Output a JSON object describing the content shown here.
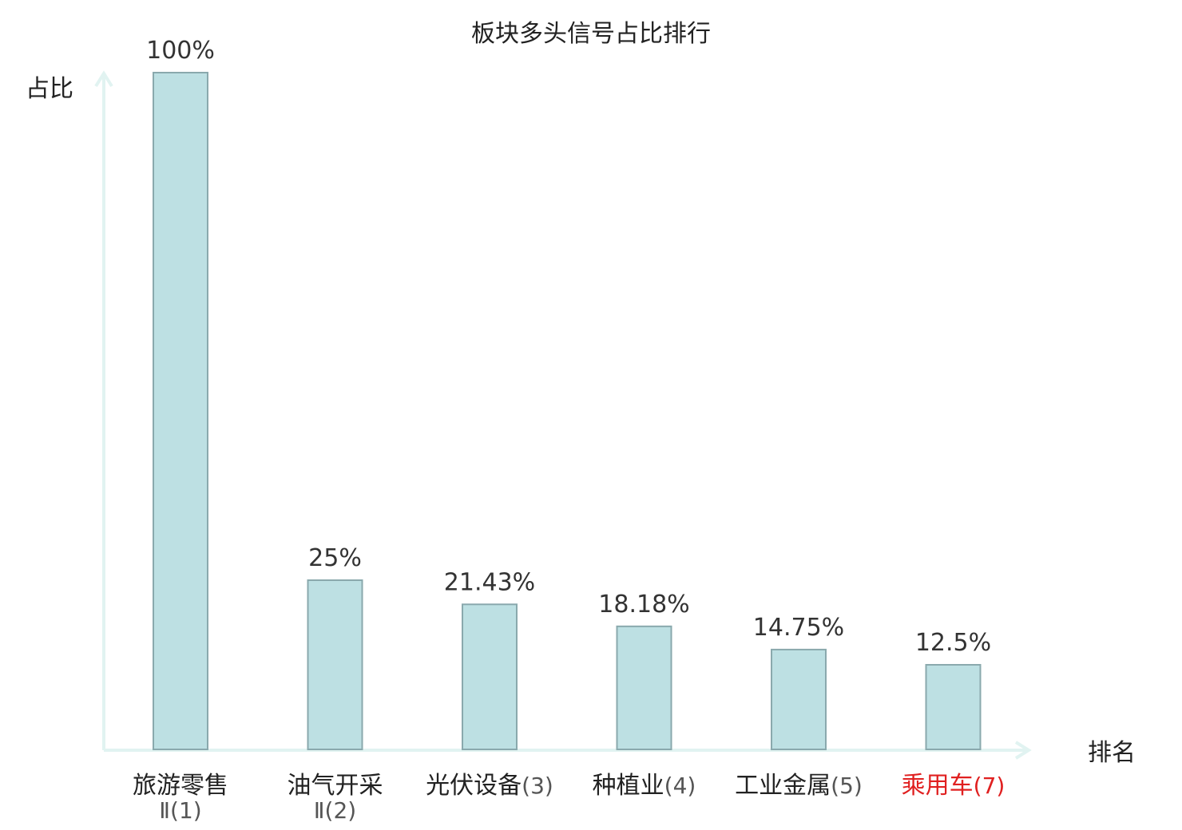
{
  "chart_data": {
    "type": "bar",
    "title": "板块多头信号占比排行",
    "ylabel": "占比",
    "xlabel": "排名",
    "ylim": [
      0,
      100
    ],
    "grid": false,
    "categories": [
      {
        "name": "旅游零售",
        "rank": "Ⅱ(1)",
        "highlight": false
      },
      {
        "name": "油气开采",
        "rank": "Ⅱ(2)",
        "highlight": false
      },
      {
        "name": "光伏设备",
        "rank": "(3)",
        "highlight": false
      },
      {
        "name": "种植业",
        "rank": "(4)",
        "highlight": false
      },
      {
        "name": "工业金属",
        "rank": "(5)",
        "highlight": false
      },
      {
        "name": "乘用车",
        "rank": "(7)",
        "highlight": true
      }
    ],
    "values": [
      100,
      25,
      21.43,
      18.18,
      14.75,
      12.5
    ],
    "value_labels": [
      "100%",
      "25%",
      "21.43%",
      "18.18%",
      "14.75%",
      "12.5%"
    ]
  },
  "colors": {
    "bar_fill": "#bde0e3",
    "bar_stroke": "#8aa9ad",
    "axis": "#e1f3f1",
    "text": "#222222",
    "value_text": "#333333",
    "rank_text": "#555555",
    "highlight": "#e02020"
  }
}
